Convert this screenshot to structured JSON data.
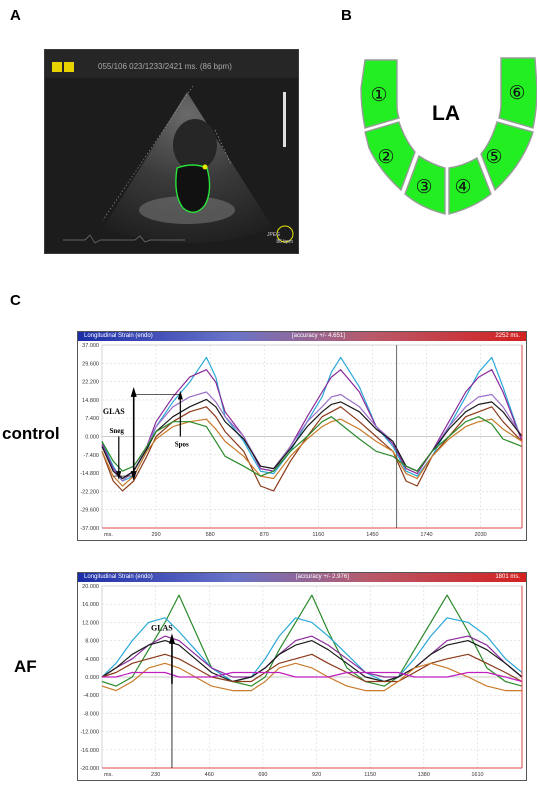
{
  "panels": {
    "a": "A",
    "b": "B",
    "c": "C"
  },
  "echo": {
    "header": "055/106  023/1233/2421 ms.   (86 bpm)",
    "jpeg_label": "JPEG",
    "bpm_label": "86 bpm"
  },
  "la_diagram": {
    "title": "LA",
    "segments": [
      "①",
      "②",
      "③",
      "④",
      "⑤",
      "⑥"
    ],
    "fill_color": "#22ee22"
  },
  "row_labels": {
    "control": "control",
    "af": "AF"
  },
  "chart_data": [
    {
      "type": "line",
      "title": "Longitudinal Strain (endo)",
      "accuracy": "[accuracy +/- 4.651]",
      "duration": "2252 ms.",
      "x_unit": "ms.",
      "x_ticks": [
        "290",
        "580",
        "870",
        "1160",
        "1450",
        "1740",
        "2030"
      ],
      "x_tick_values": [
        290,
        580,
        870,
        1160,
        1450,
        1740,
        2030
      ],
      "xlim": [
        0,
        2252
      ],
      "y_ticks": [
        "37.000",
        "29.600",
        "22.200",
        "14.800",
        "7.400",
        "0.000",
        "-7.400",
        "-14.800",
        "-22.200",
        "-29.600",
        "-37.000"
      ],
      "ylim": [
        -37,
        37
      ],
      "annotations": {
        "glas": "GLAS",
        "sneg": "Sneg",
        "spos": "Spos"
      },
      "series": [
        {
          "color": "#2aa8d8",
          "x": [
            0,
            60,
            110,
            170,
            240,
            290,
            380,
            470,
            560,
            610,
            660,
            760,
            850,
            920,
            1010,
            1100,
            1180,
            1230,
            1280,
            1380,
            1470,
            1560,
            1630,
            1690,
            1770,
            1860,
            1950,
            2020,
            2090,
            2150,
            2252
          ],
          "y": [
            -2,
            -12,
            -18,
            -16,
            -6,
            4,
            14,
            22,
            32,
            24,
            8,
            -2,
            -14,
            -15,
            -6,
            6,
            16,
            26,
            32,
            20,
            4,
            -4,
            -14,
            -16,
            -8,
            4,
            16,
            26,
            32,
            20,
            -2
          ]
        },
        {
          "color": "#8a2a9a",
          "x": [
            0,
            60,
            110,
            170,
            240,
            290,
            380,
            470,
            560,
            610,
            660,
            760,
            850,
            920,
            1010,
            1100,
            1180,
            1230,
            1280,
            1380,
            1470,
            1560,
            1630,
            1690,
            1770,
            1860,
            1950,
            2020,
            2090,
            2150,
            2252
          ],
          "y": [
            -3,
            -13,
            -17,
            -14,
            -4,
            6,
            16,
            24,
            27,
            22,
            10,
            0,
            -13,
            -14,
            -4,
            8,
            18,
            24,
            27,
            18,
            4,
            -3,
            -13,
            -15,
            -6,
            6,
            18,
            24,
            27,
            18,
            -2
          ]
        },
        {
          "color": "#9a70c8",
          "x": [
            0,
            60,
            110,
            170,
            240,
            290,
            380,
            470,
            560,
            610,
            660,
            760,
            850,
            920,
            1010,
            1100,
            1180,
            1230,
            1280,
            1380,
            1470,
            1560,
            1630,
            1690,
            1770,
            1860,
            1950,
            2020,
            2090,
            2150,
            2252
          ],
          "y": [
            -4,
            -14,
            -18,
            -14,
            -4,
            4,
            12,
            16,
            18,
            14,
            8,
            0,
            -12,
            -13,
            -4,
            6,
            12,
            16,
            17,
            12,
            4,
            -2,
            -12,
            -14,
            -6,
            4,
            12,
            16,
            17,
            12,
            0
          ]
        },
        {
          "color": "#1a1a1a",
          "x": [
            0,
            60,
            110,
            170,
            240,
            290,
            380,
            470,
            560,
            610,
            660,
            760,
            850,
            920,
            1010,
            1100,
            1180,
            1230,
            1280,
            1380,
            1470,
            1560,
            1630,
            1690,
            1770,
            1860,
            1950,
            2020,
            2090,
            2150,
            2252
          ],
          "y": [
            -4,
            -14,
            -17,
            -14,
            -5,
            2,
            8,
            12,
            15,
            12,
            6,
            -1,
            -12,
            -13,
            -5,
            4,
            10,
            13,
            14,
            10,
            3,
            -2,
            -12,
            -14,
            -6,
            3,
            10,
            13,
            14,
            10,
            0
          ]
        },
        {
          "color": "#8b3a1a",
          "x": [
            0,
            60,
            110,
            170,
            240,
            290,
            380,
            470,
            560,
            610,
            660,
            760,
            850,
            920,
            1010,
            1100,
            1180,
            1230,
            1280,
            1380,
            1470,
            1560,
            1630,
            1690,
            1770,
            1860,
            1950,
            2020,
            2090,
            2150,
            2252
          ],
          "y": [
            -6,
            -18,
            -22,
            -18,
            -8,
            0,
            6,
            10,
            12,
            8,
            2,
            -6,
            -20,
            -22,
            -10,
            0,
            8,
            10,
            12,
            6,
            0,
            -6,
            -18,
            -20,
            -8,
            0,
            8,
            10,
            12,
            6,
            -2
          ]
        },
        {
          "color": "#c87a2a",
          "x": [
            0,
            60,
            110,
            170,
            240,
            290,
            380,
            470,
            560,
            610,
            660,
            760,
            850,
            920,
            1010,
            1100,
            1180,
            1230,
            1280,
            1380,
            1470,
            1560,
            1630,
            1690,
            1770,
            1860,
            1950,
            2020,
            2090,
            2150,
            2252
          ],
          "y": [
            -6,
            -16,
            -20,
            -16,
            -6,
            -1,
            4,
            6,
            7,
            3,
            -2,
            -8,
            -16,
            -17,
            -8,
            -1,
            4,
            6,
            7,
            3,
            -2,
            -6,
            -15,
            -17,
            -8,
            -1,
            4,
            6,
            7,
            3,
            -2
          ]
        },
        {
          "color": "#2a8a2a",
          "x": [
            0,
            60,
            110,
            170,
            240,
            290,
            380,
            470,
            560,
            610,
            660,
            760,
            850,
            920,
            1010,
            1100,
            1180,
            1230,
            1280,
            1380,
            1470,
            1560,
            1630,
            1690,
            1770,
            1860,
            1950,
            2020,
            2090,
            2150,
            2252
          ],
          "y": [
            -2,
            -10,
            -14,
            -12,
            -4,
            2,
            6,
            6,
            4,
            -2,
            -8,
            -12,
            -16,
            -14,
            -6,
            0,
            6,
            8,
            5,
            -1,
            -6,
            -8,
            -12,
            -14,
            -6,
            0,
            6,
            8,
            5,
            -1,
            -4
          ]
        }
      ]
    },
    {
      "type": "line",
      "title": "Longitudinal Strain (endo)",
      "accuracy": "[accuracy +/- 2.976]",
      "duration": "1801 ms.",
      "x_unit": "ms.",
      "x_ticks": [
        "230",
        "460",
        "690",
        "920",
        "1150",
        "1380",
        "1610"
      ],
      "x_tick_values": [
        230,
        460,
        690,
        920,
        1150,
        1380,
        1610
      ],
      "xlim": [
        0,
        1801
      ],
      "y_ticks": [
        "20.000",
        "16.000",
        "12.000",
        "8.000",
        "4.000",
        "0.000",
        "-4.000",
        "-8.000",
        "-12.000",
        "-16.000",
        "-20.000"
      ],
      "ylim": [
        -20,
        20
      ],
      "annotations": {
        "glas": "GLAS"
      },
      "series": [
        {
          "color": "#2a8a2a",
          "x": [
            0,
            60,
            130,
            200,
            270,
            330,
            400,
            470,
            560,
            640,
            700,
            760,
            830,
            900,
            970,
            1050,
            1130,
            1210,
            1270,
            1340,
            1410,
            1480,
            1570,
            1650,
            1730,
            1801
          ],
          "y": [
            -1,
            -2,
            0,
            6,
            12,
            18,
            10,
            2,
            -1,
            -2,
            0,
            6,
            12,
            18,
            10,
            2,
            -1,
            -2,
            0,
            6,
            12,
            18,
            10,
            2,
            -1,
            -2
          ]
        },
        {
          "color": "#2aa8d8",
          "x": [
            0,
            60,
            130,
            200,
            270,
            330,
            400,
            470,
            560,
            640,
            700,
            760,
            830,
            900,
            970,
            1050,
            1130,
            1210,
            1270,
            1340,
            1410,
            1480,
            1570,
            1650,
            1730,
            1801
          ],
          "y": [
            0,
            3,
            8,
            12,
            13,
            10,
            6,
            2,
            -1,
            0,
            4,
            9,
            13,
            12,
            9,
            5,
            1,
            -1,
            0,
            4,
            9,
            13,
            12,
            9,
            4,
            1
          ]
        },
        {
          "color": "#8a2a9a",
          "x": [
            0,
            60,
            130,
            200,
            270,
            330,
            400,
            470,
            560,
            640,
            700,
            760,
            830,
            900,
            970,
            1050,
            1130,
            1210,
            1270,
            1340,
            1410,
            1480,
            1570,
            1650,
            1730,
            1801
          ],
          "y": [
            0,
            2,
            4,
            7,
            9,
            8,
            5,
            2,
            0,
            0,
            2,
            5,
            8,
            9,
            7,
            4,
            1,
            0,
            0,
            2,
            5,
            8,
            9,
            7,
            3,
            0
          ]
        },
        {
          "color": "#1a1a1a",
          "x": [
            0,
            60,
            130,
            200,
            270,
            330,
            400,
            470,
            560,
            640,
            700,
            760,
            830,
            900,
            970,
            1050,
            1130,
            1210,
            1270,
            1340,
            1410,
            1480,
            1570,
            1650,
            1730,
            1801
          ],
          "y": [
            0,
            2,
            5,
            7,
            8,
            7,
            4,
            1,
            -1,
            0,
            2,
            5,
            7,
            8,
            6,
            3,
            0,
            -1,
            0,
            2,
            5,
            7,
            8,
            6,
            3,
            0
          ]
        },
        {
          "color": "#8b3a1a",
          "x": [
            0,
            60,
            130,
            200,
            270,
            330,
            400,
            470,
            560,
            640,
            700,
            760,
            830,
            900,
            970,
            1050,
            1130,
            1210,
            1270,
            1340,
            1410,
            1480,
            1570,
            1650,
            1730,
            1801
          ],
          "y": [
            0,
            1,
            3,
            4,
            5,
            4,
            2,
            0,
            -1,
            -1,
            1,
            3,
            4,
            5,
            3,
            1,
            -1,
            -1,
            -1,
            1,
            3,
            4,
            5,
            3,
            1,
            -1
          ]
        },
        {
          "color": "#c87a2a",
          "x": [
            0,
            60,
            130,
            200,
            270,
            330,
            400,
            470,
            560,
            640,
            700,
            760,
            830,
            900,
            970,
            1050,
            1130,
            1210,
            1270,
            1340,
            1410,
            1480,
            1570,
            1650,
            1730,
            1801
          ],
          "y": [
            -2,
            -3,
            -1,
            2,
            3,
            2,
            0,
            -2,
            -3,
            -3,
            -1,
            2,
            3,
            2,
            0,
            -2,
            -3,
            -3,
            -1,
            2,
            3,
            2,
            0,
            -2,
            -3,
            -3
          ]
        },
        {
          "color": "#c020c0",
          "x": [
            0,
            60,
            130,
            200,
            270,
            330,
            400,
            470,
            560,
            640,
            700,
            760,
            830,
            900,
            970,
            1050,
            1130,
            1210,
            1270,
            1340,
            1410,
            1480,
            1570,
            1650,
            1730,
            1801
          ],
          "y": [
            0,
            0,
            1,
            1,
            1,
            0,
            0,
            0,
            1,
            1,
            1,
            1,
            0,
            0,
            0,
            1,
            1,
            1,
            1,
            0,
            0,
            0,
            1,
            1,
            0,
            -1
          ]
        }
      ]
    }
  ]
}
